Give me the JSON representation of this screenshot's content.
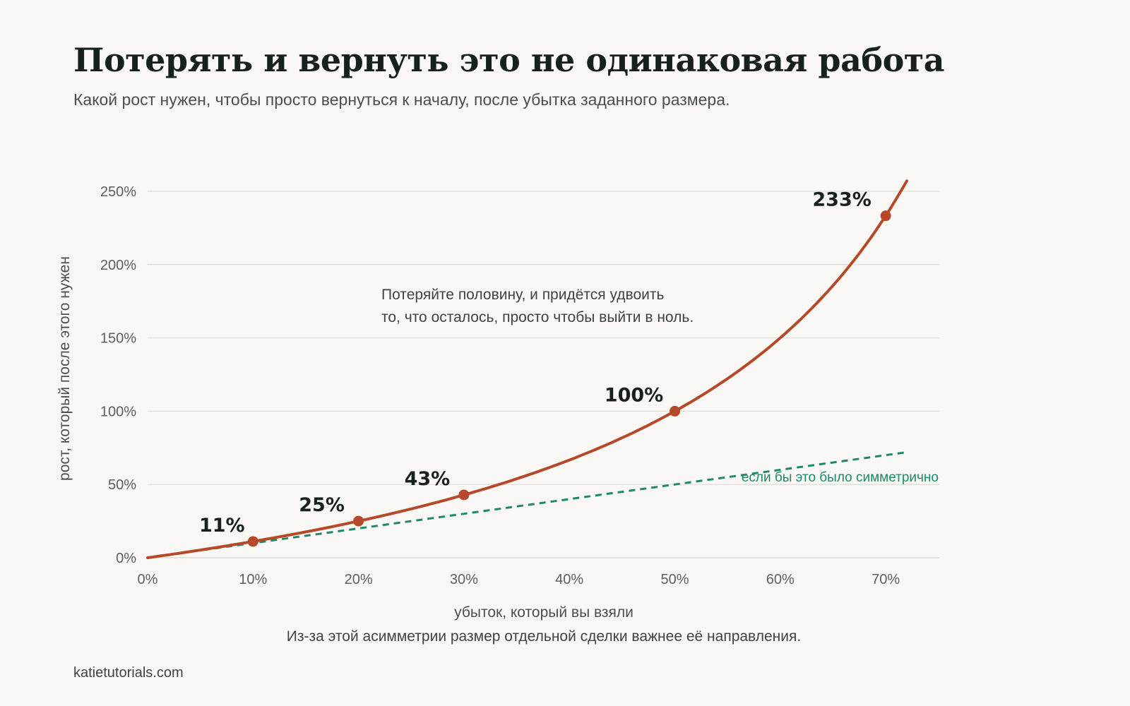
{
  "title": "Потерять и вернуть это не одинаковая работа",
  "subtitle": "Какой рост нужен, чтобы просто вернуться к началу, после убытка заданного размера.",
  "caption": "Из-за этой асимметрии размер отдельной сделки важнее её направления.",
  "source": "katietutorials.com",
  "colors": {
    "background": "#f9f8f4",
    "curve": "#b5492a",
    "symmetric": "#1c8a6a",
    "grid": "#e4e2da"
  },
  "chart_data": {
    "type": "line",
    "xlabel": "убыток, который вы взяли",
    "ylabel": "рост, который после этого нужен",
    "xlim": [
      0,
      75
    ],
    "ylim": [
      0,
      250
    ],
    "x_ticks": [
      "0%",
      "10%",
      "20%",
      "30%",
      "40%",
      "50%",
      "60%",
      "70%"
    ],
    "y_ticks": [
      "0%",
      "50%",
      "100%",
      "150%",
      "200%",
      "250%"
    ],
    "grid": "horizontal",
    "series": [
      {
        "style": "solid",
        "x": [
          0,
          5,
          10,
          15,
          20,
          25,
          30,
          35,
          40,
          45,
          50,
          55,
          60,
          65,
          70,
          72
        ],
        "y": [
          0,
          5.3,
          11.1,
          17.6,
          25,
          33.3,
          42.9,
          53.8,
          66.7,
          81.8,
          100,
          122.2,
          150,
          185.7,
          233.3,
          257.1
        ]
      },
      {
        "name": "если бы это было симметрично",
        "style": "dashed",
        "x": [
          0,
          72
        ],
        "y": [
          0,
          72
        ]
      }
    ],
    "highlighted_points": [
      {
        "x": 10,
        "y": 11.1,
        "label": "11%"
      },
      {
        "x": 20,
        "y": 25,
        "label": "25%"
      },
      {
        "x": 30,
        "y": 42.9,
        "label": "43%"
      },
      {
        "x": 50,
        "y": 100,
        "label": "100%"
      },
      {
        "x": 70,
        "y": 233.3,
        "label": "233%"
      }
    ],
    "annotation": [
      "Потеряйте половину, и придётся удвоить",
      "то, что осталось, просто чтобы выйти в ноль."
    ]
  }
}
